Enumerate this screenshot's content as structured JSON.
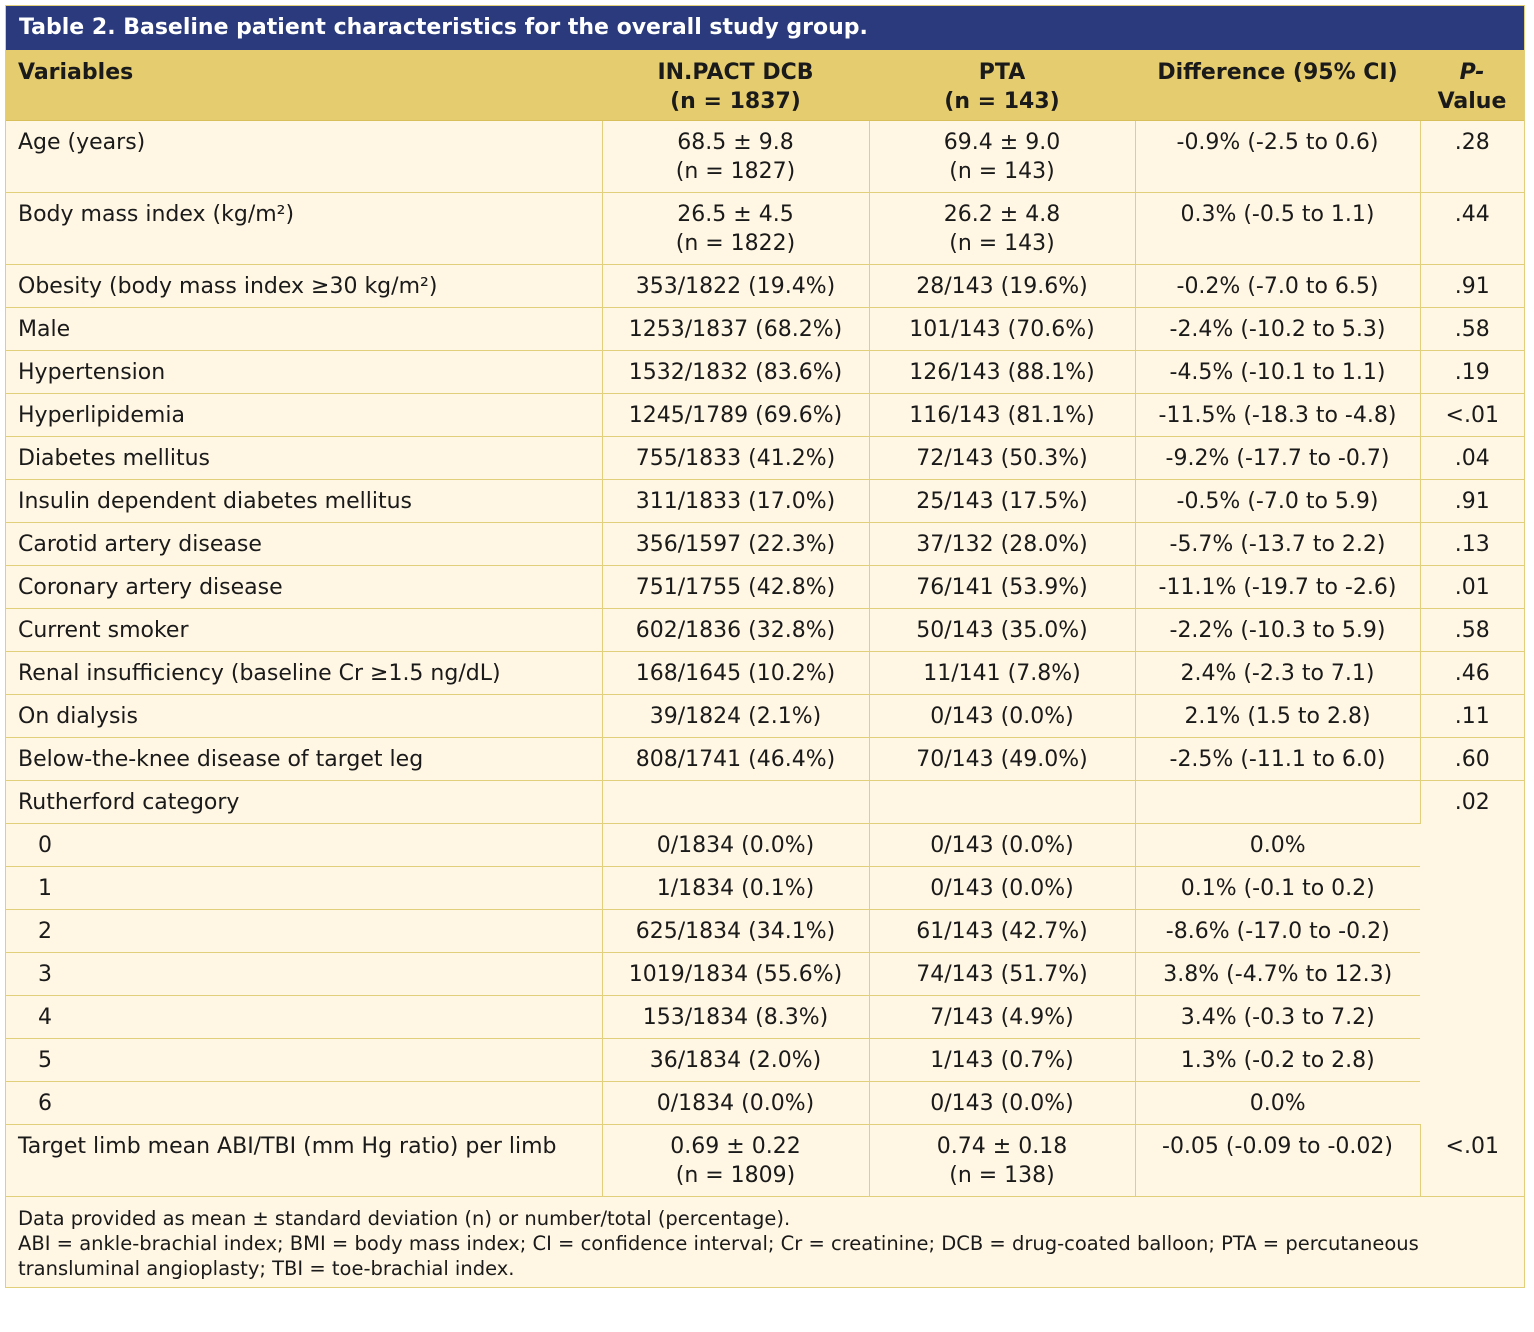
{
  "title": "Table 2. Baseline patient characteristics for the overall study group.",
  "header": {
    "variables": "Variables",
    "dcb_line1": "IN.PACT DCB",
    "dcb_line2": "(n = 1837)",
    "pta_line1": "PTA",
    "pta_line2": "(n = 143)",
    "difference": "Difference (95% CI)",
    "p_line1": "P-",
    "p_line2": "Value"
  },
  "rows": [
    {
      "label": "Age (years)",
      "dcb": "68.5 ± 9.8",
      "dcb_n": "(n = 1827)",
      "pta": "69.4 ± 9.0",
      "pta_n": "(n = 143)",
      "diff": "-0.9% (-2.5 to 0.6)",
      "p": ".28"
    },
    {
      "label": "Body mass index (kg/m²)",
      "dcb": "26.5 ± 4.5",
      "dcb_n": "(n = 1822)",
      "pta": "26.2 ± 4.8",
      "pta_n": "(n = 143)",
      "diff": "0.3% (-0.5 to 1.1)",
      "p": ".44"
    },
    {
      "label": "Obesity (body mass index ≥30 kg/m²)",
      "dcb": "353/1822 (19.4%)",
      "pta": "28/143 (19.6%)",
      "diff": "-0.2% (-7.0 to 6.5)",
      "p": ".91"
    },
    {
      "label": "Male",
      "dcb": "1253/1837 (68.2%)",
      "pta": "101/143 (70.6%)",
      "diff": "-2.4% (-10.2 to 5.3)",
      "p": ".58"
    },
    {
      "label": "Hypertension",
      "dcb": "1532/1832 (83.6%)",
      "pta": "126/143 (88.1%)",
      "diff": "-4.5% (-10.1 to 1.1)",
      "p": ".19"
    },
    {
      "label": "Hyperlipidemia",
      "dcb": "1245/1789 (69.6%)",
      "pta": "116/143 (81.1%)",
      "diff": "-11.5% (-18.3 to -4.8)",
      "p": "<.01"
    },
    {
      "label": "Diabetes mellitus",
      "dcb": "755/1833 (41.2%)",
      "pta": "72/143 (50.3%)",
      "diff": "-9.2% (-17.7 to -0.7)",
      "p": ".04"
    },
    {
      "label": "Insulin dependent diabetes mellitus",
      "dcb": "311/1833 (17.0%)",
      "pta": "25/143 (17.5%)",
      "diff": "-0.5% (-7.0 to 5.9)",
      "p": ".91"
    },
    {
      "label": "Carotid artery disease",
      "dcb": "356/1597 (22.3%)",
      "pta": "37/132 (28.0%)",
      "diff": "-5.7% (-13.7 to 2.2)",
      "p": ".13"
    },
    {
      "label": "Coronary artery disease",
      "dcb": "751/1755 (42.8%)",
      "pta": "76/141 (53.9%)",
      "diff": "-11.1% (-19.7 to -2.6)",
      "p": ".01"
    },
    {
      "label": "Current smoker",
      "dcb": "602/1836 (32.8%)",
      "pta": "50/143 (35.0%)",
      "diff": "-2.2% (-10.3 to 5.9)",
      "p": ".58"
    },
    {
      "label": "Renal insufficiency (baseline Cr ≥1.5 ng/dL)",
      "dcb": "168/1645 (10.2%)",
      "pta": "11/141 (7.8%)",
      "diff": "2.4% (-2.3 to 7.1)",
      "p": ".46"
    },
    {
      "label": "On dialysis",
      "dcb": "39/1824 (2.1%)",
      "pta": "0/143 (0.0%)",
      "diff": "2.1% (1.5 to 2.8)",
      "p": ".11"
    },
    {
      "label": "Below-the-knee disease of target leg",
      "dcb": "808/1741 (46.4%)",
      "pta": "70/143 (49.0%)",
      "diff": "-2.5% (-11.1 to 6.0)",
      "p": ".60"
    }
  ],
  "rutherford": {
    "label": "Rutherford category",
    "p": ".02",
    "categories": [
      {
        "label": "0",
        "dcb": "0/1834 (0.0%)",
        "pta": "0/143 (0.0%)",
        "diff": "0.0%"
      },
      {
        "label": "1",
        "dcb": "1/1834 (0.1%)",
        "pta": "0/143 (0.0%)",
        "diff": "0.1% (-0.1 to 0.2)"
      },
      {
        "label": "2",
        "dcb": "625/1834 (34.1%)",
        "pta": "61/143 (42.7%)",
        "diff": "-8.6% (-17.0 to -0.2)"
      },
      {
        "label": "3",
        "dcb": "1019/1834 (55.6%)",
        "pta": "74/143 (51.7%)",
        "diff": "3.8% (-4.7% to 12.3)"
      },
      {
        "label": "4",
        "dcb": "153/1834 (8.3%)",
        "pta": "7/143 (4.9%)",
        "diff": "3.4% (-0.3 to 7.2)"
      },
      {
        "label": "5",
        "dcb": "36/1834 (2.0%)",
        "pta": "1/143 (0.7%)",
        "diff": "1.3% (-0.2 to 2.8)"
      },
      {
        "label": "6",
        "dcb": "0/1834 (0.0%)",
        "pta": "0/143 (0.0%)",
        "diff": "0.0%"
      }
    ]
  },
  "last_row": {
    "label": "Target limb mean ABI/TBI (mm Hg ratio) per limb",
    "dcb": "0.69 ± 0.22",
    "dcb_n": "(n = 1809)",
    "pta": "0.74 ± 0.18",
    "pta_n": "(n = 138)",
    "diff": "-0.05 (-0.09 to -0.02)",
    "p": "<.01"
  },
  "footnote": {
    "line1": "Data provided as mean ± standard deviation (n) or number/total (percentage).",
    "line2": "ABI = ankle-brachial index; BMI = body mass index; CI = confidence interval; Cr = creatinine; DCB = drug-coated balloon; PTA = percutaneous",
    "line3": "transluminal angioplasty; TBI = toe-brachial index."
  },
  "colors": {
    "title_bg": "#2a3a7c",
    "header_bg": "#e5cc6e",
    "body_bg": "#fff6e3",
    "border": "#e2cf7b"
  }
}
